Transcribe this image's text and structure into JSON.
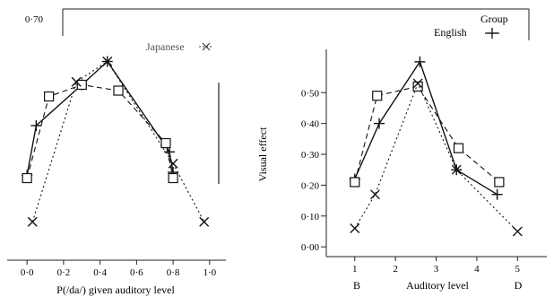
{
  "chart_data": [
    {
      "type": "line",
      "xlabel": "P(/da/) given auditory level",
      "ylabel": "",
      "xlim": [
        -0.05,
        1.05
      ],
      "ylim": [
        -0.02,
        0.62
      ],
      "x_ticks": [
        "0·0",
        "0·2",
        "0·4",
        "0·6",
        "0·8",
        "1·0"
      ],
      "x_tick_values": [
        0.0,
        0.2,
        0.4,
        0.6,
        0.8,
        1.0
      ],
      "y_ticks": [
        "0·70"
      ],
      "legend": [
        "Japanese",
        "English"
      ],
      "legend_title": "Group",
      "series": [
        {
          "name": "English",
          "marker": "plus",
          "dash": "solid",
          "x": [
            0.0,
            0.05,
            0.3,
            0.44,
            0.78,
            0.8
          ],
          "y": [
            0.21,
            0.38,
            0.52,
            0.6,
            0.29,
            0.22
          ]
        },
        {
          "name": "",
          "marker": "square",
          "dash": "dashed",
          "x": [
            0.0,
            0.12,
            0.3,
            0.5,
            0.76,
            0.8
          ],
          "y": [
            0.2,
            0.48,
            0.52,
            0.5,
            0.32,
            0.2
          ]
        },
        {
          "name": "Japanese",
          "marker": "x",
          "dash": "dotted",
          "x": [
            0.03,
            0.27,
            0.44,
            0.8,
            0.97
          ],
          "y": [
            0.05,
            0.53,
            0.6,
            0.25,
            0.05
          ]
        }
      ]
    },
    {
      "type": "line",
      "xlabel": "Auditory level",
      "ylabel": "Visual effect",
      "xlim": [
        0.3,
        5.5
      ],
      "ylim": [
        -0.02,
        0.62
      ],
      "x_ticks": [
        "1",
        "2",
        "3",
        "4",
        "5"
      ],
      "x_tick_values": [
        1,
        2,
        3,
        4,
        5
      ],
      "x_endpoint_labels": [
        "B",
        "D"
      ],
      "y_ticks": [
        "0·00",
        "0·10",
        "0·20",
        "0·30",
        "0·40",
        "0·50"
      ],
      "y_tick_values": [
        0.0,
        0.1,
        0.2,
        0.3,
        0.4,
        0.5
      ],
      "series": [
        {
          "name": "English",
          "marker": "plus",
          "dash": "solid",
          "x": [
            1,
            1.6,
            2.6,
            3.5,
            4.5
          ],
          "y": [
            0.22,
            0.4,
            0.6,
            0.25,
            0.17
          ]
        },
        {
          "name": "",
          "marker": "square",
          "dash": "dashed",
          "x": [
            1,
            1.55,
            2.55,
            3.55,
            4.55
          ],
          "y": [
            0.21,
            0.49,
            0.52,
            0.32,
            0.21
          ]
        },
        {
          "name": "Japanese",
          "marker": "x",
          "dash": "dotted",
          "x": [
            1,
            1.5,
            2.55,
            3.5,
            5.0
          ],
          "y": [
            0.06,
            0.17,
            0.53,
            0.25,
            0.05
          ]
        }
      ]
    }
  ]
}
